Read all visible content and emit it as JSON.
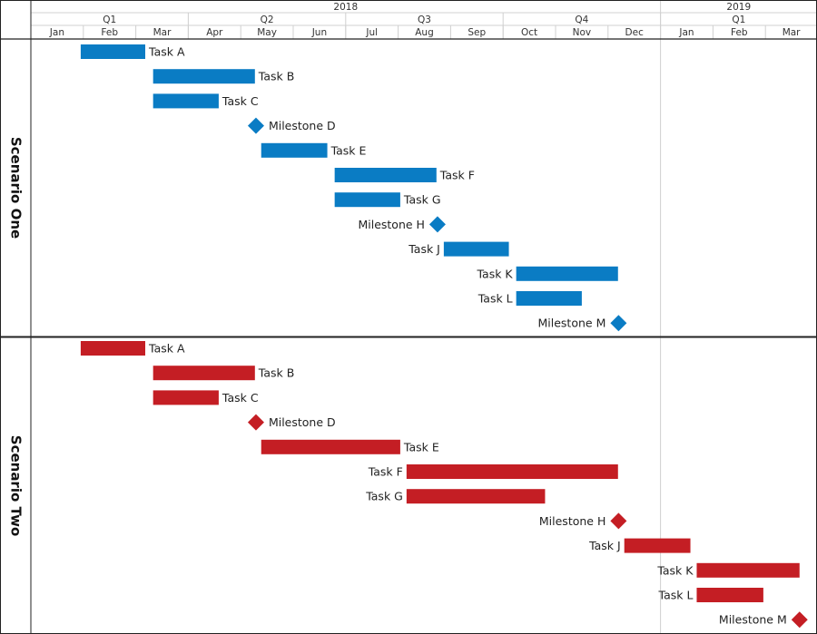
{
  "chart_data": {
    "type": "gantt",
    "title": "",
    "time_unit": "months since Jan 2018",
    "x_range": [
      0,
      15
    ],
    "header": {
      "years": [
        {
          "label": "2018",
          "start": 0,
          "end": 12
        },
        {
          "label": "2019",
          "start": 12,
          "end": 15
        }
      ],
      "quarters": [
        {
          "label": "Q1",
          "start": 0,
          "end": 3
        },
        {
          "label": "Q2",
          "start": 3,
          "end": 6
        },
        {
          "label": "Q3",
          "start": 6,
          "end": 9
        },
        {
          "label": "Q4",
          "start": 9,
          "end": 12
        },
        {
          "label": "Q1",
          "start": 12,
          "end": 15
        }
      ],
      "months": [
        "Jan",
        "Feb",
        "Mar",
        "Apr",
        "May",
        "Jun",
        "Jul",
        "Aug",
        "Sep",
        "Oct",
        "Nov",
        "Dec",
        "Jan",
        "Feb",
        "Mar"
      ]
    },
    "series": [
      {
        "name": "Scenario One",
        "color": "#0a7cc4",
        "items": [
          {
            "label": "Task A",
            "type": "task",
            "start": 0.95,
            "end": 2.18,
            "label_side": "right"
          },
          {
            "label": "Task B",
            "type": "task",
            "start": 2.33,
            "end": 4.27,
            "label_side": "right"
          },
          {
            "label": "Task C",
            "type": "task",
            "start": 2.33,
            "end": 3.58,
            "label_side": "right"
          },
          {
            "label": "Milestone D",
            "type": "milestone",
            "at": 4.29,
            "label_side": "right"
          },
          {
            "label": "Task E",
            "type": "task",
            "start": 4.39,
            "end": 5.65,
            "label_side": "right"
          },
          {
            "label": "Task F",
            "type": "task",
            "start": 5.79,
            "end": 7.73,
            "label_side": "right"
          },
          {
            "label": "Task G",
            "type": "task",
            "start": 5.79,
            "end": 7.04,
            "label_side": "right"
          },
          {
            "label": "Milestone H",
            "type": "milestone",
            "at": 7.75,
            "label_side": "left"
          },
          {
            "label": "Task J",
            "type": "task",
            "start": 7.87,
            "end": 9.11,
            "label_side": "left"
          },
          {
            "label": "Task K",
            "type": "task",
            "start": 9.25,
            "end": 11.19,
            "label_side": "left"
          },
          {
            "label": "Task L",
            "type": "task",
            "start": 9.25,
            "end": 10.5,
            "label_side": "left"
          },
          {
            "label": "Milestone M",
            "type": "milestone",
            "at": 11.2,
            "label_side": "left"
          }
        ]
      },
      {
        "name": "Scenario Two",
        "color": "#c41e24",
        "items": [
          {
            "label": "Task A",
            "type": "task",
            "start": 0.95,
            "end": 2.18,
            "label_side": "right"
          },
          {
            "label": "Task B",
            "type": "task",
            "start": 2.33,
            "end": 4.27,
            "label_side": "right"
          },
          {
            "label": "Task C",
            "type": "task",
            "start": 2.33,
            "end": 3.58,
            "label_side": "right"
          },
          {
            "label": "Milestone D",
            "type": "milestone",
            "at": 4.29,
            "label_side": "right"
          },
          {
            "label": "Task E",
            "type": "task",
            "start": 4.39,
            "end": 7.04,
            "label_side": "right"
          },
          {
            "label": "Task F",
            "type": "task",
            "start": 7.16,
            "end": 11.19,
            "label_side": "left"
          },
          {
            "label": "Task G",
            "type": "task",
            "start": 7.16,
            "end": 9.8,
            "label_side": "left"
          },
          {
            "label": "Milestone H",
            "type": "milestone",
            "at": 11.2,
            "label_side": "left"
          },
          {
            "label": "Task J",
            "type": "task",
            "start": 11.31,
            "end": 12.57,
            "label_side": "left"
          },
          {
            "label": "Task K",
            "type": "task",
            "start": 12.69,
            "end": 14.65,
            "label_side": "left"
          },
          {
            "label": "Task L",
            "type": "task",
            "start": 12.69,
            "end": 13.96,
            "label_side": "left"
          },
          {
            "label": "Milestone M",
            "type": "milestone",
            "at": 14.65,
            "label_side": "left"
          }
        ]
      }
    ],
    "today_line_at": 12
  }
}
